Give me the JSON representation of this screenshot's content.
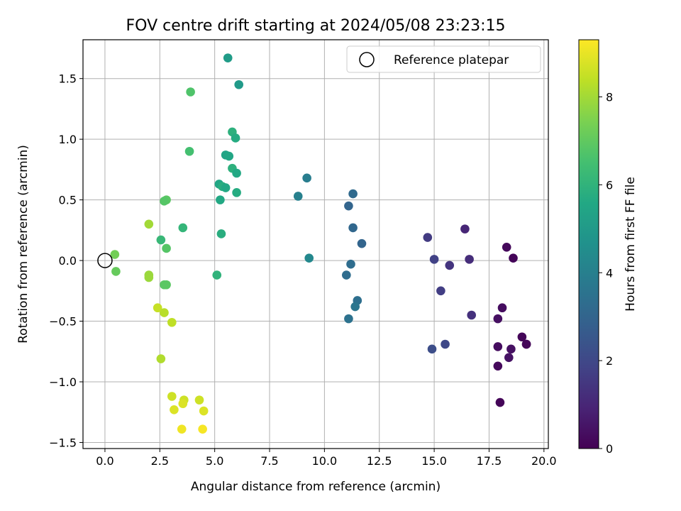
{
  "chart_data": {
    "type": "scatter",
    "title": "FOV centre drift starting at 2024/05/08 23:23:15",
    "xlabel": "Angular distance from reference (arcmin)",
    "ylabel": "Rotation from reference (arcmin)",
    "xlim": [
      -1.0,
      20.2
    ],
    "ylim": [
      -1.55,
      1.82
    ],
    "xticks": [
      0.0,
      2.5,
      5.0,
      7.5,
      10.0,
      12.5,
      15.0,
      17.5,
      20.0
    ],
    "xtick_labels": [
      "0.0",
      "2.5",
      "5.0",
      "7.5",
      "10.0",
      "12.5",
      "15.0",
      "17.5",
      "20.0"
    ],
    "yticks": [
      -1.5,
      -1.0,
      -0.5,
      0.0,
      0.5,
      1.0,
      1.5
    ],
    "ytick_labels": [
      "−1.5",
      "−1.0",
      "−0.5",
      "0.0",
      "0.5",
      "1.0",
      "1.5"
    ],
    "grid": true,
    "legend": {
      "placement": "upper-right",
      "entries": [
        "Reference platepar"
      ]
    },
    "colormap": "viridis",
    "colorbar": {
      "label": "Hours from first FF file",
      "range": [
        0,
        9.3
      ],
      "ticks": [
        0,
        2,
        4,
        6,
        8
      ],
      "tick_labels": [
        "0",
        "2",
        "4",
        "6",
        "8"
      ]
    },
    "reference_point": {
      "x": 0.0,
      "y": 0.0,
      "label": "Reference platepar"
    },
    "points": [
      {
        "x": 18.3,
        "y": 0.11,
        "hours": 0.2
      },
      {
        "x": 18.6,
        "y": 0.02,
        "hours": 0.1
      },
      {
        "x": 18.1,
        "y": -0.39,
        "hours": 0.3
      },
      {
        "x": 17.9,
        "y": -0.48,
        "hours": 0.4
      },
      {
        "x": 19.0,
        "y": -0.63,
        "hours": 0.1
      },
      {
        "x": 19.2,
        "y": -0.69,
        "hours": 0.1
      },
      {
        "x": 19.2,
        "y": -0.69,
        "hours": 0.15
      },
      {
        "x": 17.9,
        "y": -0.71,
        "hours": 0.3
      },
      {
        "x": 18.5,
        "y": -0.73,
        "hours": 0.4
      },
      {
        "x": 18.4,
        "y": -0.8,
        "hours": 0.45
      },
      {
        "x": 17.9,
        "y": -0.87,
        "hours": 0.2
      },
      {
        "x": 18.0,
        "y": -1.17,
        "hours": 0.1
      },
      {
        "x": 16.4,
        "y": 0.26,
        "hours": 1.0
      },
      {
        "x": 16.6,
        "y": 0.01,
        "hours": 1.2
      },
      {
        "x": 14.7,
        "y": 0.19,
        "hours": 1.6
      },
      {
        "x": 15.0,
        "y": 0.01,
        "hours": 1.8
      },
      {
        "x": 15.7,
        "y": -0.04,
        "hours": 1.4
      },
      {
        "x": 15.3,
        "y": -0.25,
        "hours": 1.7
      },
      {
        "x": 16.7,
        "y": -0.45,
        "hours": 1.3
      },
      {
        "x": 14.9,
        "y": -0.73,
        "hours": 2.2
      },
      {
        "x": 15.5,
        "y": -0.69,
        "hours": 2.0
      },
      {
        "x": 11.3,
        "y": 0.55,
        "hours": 3.2
      },
      {
        "x": 11.1,
        "y": 0.45,
        "hours": 3.0
      },
      {
        "x": 11.3,
        "y": 0.27,
        "hours": 3.1
      },
      {
        "x": 11.7,
        "y": 0.14,
        "hours": 3.0
      },
      {
        "x": 11.2,
        "y": -0.03,
        "hours": 3.3
      },
      {
        "x": 11.0,
        "y": -0.12,
        "hours": 3.3
      },
      {
        "x": 11.5,
        "y": -0.33,
        "hours": 3.4
      },
      {
        "x": 11.4,
        "y": -0.38,
        "hours": 3.6
      },
      {
        "x": 11.1,
        "y": -0.48,
        "hours": 3.5
      },
      {
        "x": 9.2,
        "y": 0.68,
        "hours": 3.9
      },
      {
        "x": 8.8,
        "y": 0.53,
        "hours": 4.0
      },
      {
        "x": 9.3,
        "y": 0.02,
        "hours": 4.3
      },
      {
        "x": 5.6,
        "y": 1.67,
        "hours": 5.1
      },
      {
        "x": 6.1,
        "y": 1.45,
        "hours": 5.0
      },
      {
        "x": 3.9,
        "y": 1.39,
        "hours": 6.7
      },
      {
        "x": 5.8,
        "y": 1.06,
        "hours": 5.9
      },
      {
        "x": 5.95,
        "y": 1.01,
        "hours": 5.7
      },
      {
        "x": 3.85,
        "y": 0.9,
        "hours": 6.5
      },
      {
        "x": 5.5,
        "y": 0.87,
        "hours": 5.4
      },
      {
        "x": 5.65,
        "y": 0.86,
        "hours": 5.5
      },
      {
        "x": 5.8,
        "y": 0.76,
        "hours": 5.9
      },
      {
        "x": 6.0,
        "y": 0.72,
        "hours": 5.6
      },
      {
        "x": 5.2,
        "y": 0.63,
        "hours": 5.5
      },
      {
        "x": 5.35,
        "y": 0.61,
        "hours": 5.8
      },
      {
        "x": 5.5,
        "y": 0.6,
        "hours": 5.6
      },
      {
        "x": 6.0,
        "y": 0.56,
        "hours": 5.7
      },
      {
        "x": 5.25,
        "y": 0.5,
        "hours": 5.6
      },
      {
        "x": 2.8,
        "y": 0.5,
        "hours": 6.9
      },
      {
        "x": 2.7,
        "y": 0.49,
        "hours": 6.8
      },
      {
        "x": 3.55,
        "y": 0.27,
        "hours": 6.1
      },
      {
        "x": 5.3,
        "y": 0.22,
        "hours": 5.8
      },
      {
        "x": 2.55,
        "y": 0.17,
        "hours": 6.2
      },
      {
        "x": 2.8,
        "y": 0.1,
        "hours": 6.8
      },
      {
        "x": 5.1,
        "y": -0.12,
        "hours": 6.0
      },
      {
        "x": 0.45,
        "y": 0.05,
        "hours": 7.3
      },
      {
        "x": 0.5,
        "y": -0.09,
        "hours": 7.1
      },
      {
        "x": 2.0,
        "y": 0.3,
        "hours": 8.0
      },
      {
        "x": 2.0,
        "y": -0.12,
        "hours": 7.9
      },
      {
        "x": 2.0,
        "y": -0.14,
        "hours": 7.9
      },
      {
        "x": 2.7,
        "y": -0.2,
        "hours": 6.9
      },
      {
        "x": 2.8,
        "y": -0.2,
        "hours": 6.9
      },
      {
        "x": 2.4,
        "y": -0.39,
        "hours": 8.5
      },
      {
        "x": 2.7,
        "y": -0.43,
        "hours": 8.3
      },
      {
        "x": 3.05,
        "y": -0.51,
        "hours": 8.4
      },
      {
        "x": 2.55,
        "y": -0.81,
        "hours": 8.2
      },
      {
        "x": 3.05,
        "y": -1.12,
        "hours": 8.6
      },
      {
        "x": 3.15,
        "y": -1.23,
        "hours": 8.8
      },
      {
        "x": 3.6,
        "y": -1.15,
        "hours": 8.6
      },
      {
        "x": 3.55,
        "y": -1.18,
        "hours": 8.8
      },
      {
        "x": 4.3,
        "y": -1.15,
        "hours": 8.6
      },
      {
        "x": 4.5,
        "y": -1.24,
        "hours": 8.8
      },
      {
        "x": 3.5,
        "y": -1.39,
        "hours": 9.1
      },
      {
        "x": 4.45,
        "y": -1.39,
        "hours": 9.2
      }
    ]
  }
}
